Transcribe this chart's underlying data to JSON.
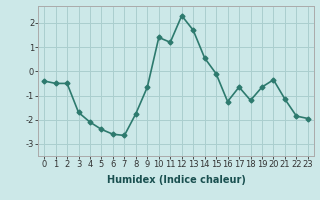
{
  "x": [
    0,
    1,
    2,
    3,
    4,
    5,
    6,
    7,
    8,
    9,
    10,
    11,
    12,
    13,
    14,
    15,
    16,
    17,
    18,
    19,
    20,
    21,
    22,
    23
  ],
  "y": [
    -0.4,
    -0.5,
    -0.5,
    -1.7,
    -2.1,
    -2.4,
    -2.6,
    -2.65,
    -1.75,
    -0.65,
    1.4,
    1.2,
    2.3,
    1.7,
    0.55,
    -0.1,
    -1.25,
    -0.65,
    -1.2,
    -0.65,
    -0.35,
    -1.15,
    -1.85,
    -1.95
  ],
  "line_color": "#2d7a6e",
  "marker": "D",
  "marker_size": 2.5,
  "bg_color": "#cce8e8",
  "grid_color": "#aacece",
  "ylim": [
    -3.5,
    2.7
  ],
  "yticks": [
    -3,
    -2,
    -1,
    0,
    1,
    2
  ],
  "xticks": [
    0,
    1,
    2,
    3,
    4,
    5,
    6,
    7,
    8,
    9,
    10,
    11,
    12,
    13,
    14,
    15,
    16,
    17,
    18,
    19,
    20,
    21,
    22,
    23
  ],
  "xlabel": "Humidex (Indice chaleur)",
  "xlabel_fontsize": 7,
  "tick_fontsize": 6,
  "line_width": 1.2
}
